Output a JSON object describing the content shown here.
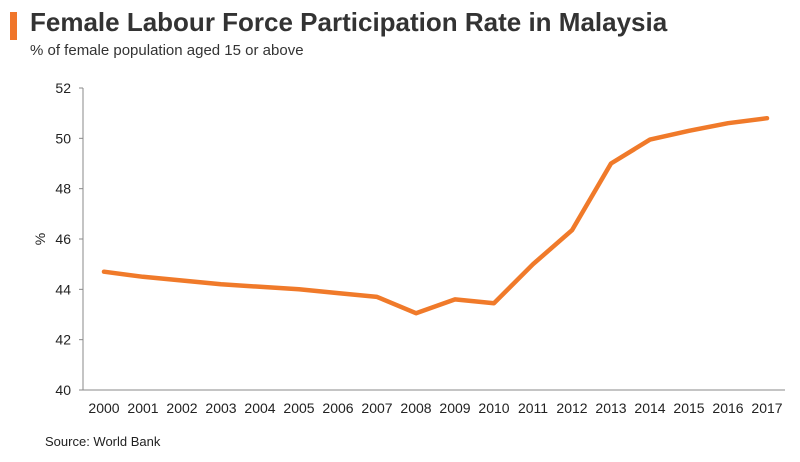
{
  "header": {
    "title": "Female Labour Force Participation Rate in Malaysia",
    "subtitle": "% of female population aged 15 or above"
  },
  "footer": {
    "source": "Source: World Bank"
  },
  "colors": {
    "accent": "#f0762b",
    "line": "#f07a2a",
    "axis": "#888888"
  },
  "chart_data": {
    "type": "line",
    "title": "Female Labour Force Participation Rate in Malaysia",
    "subtitle": "% of female population aged 15 or above",
    "xlabel": "",
    "ylabel": "%",
    "ylim": [
      40,
      52
    ],
    "yticks": [
      40,
      42,
      44,
      46,
      48,
      50,
      52
    ],
    "grid": false,
    "legend": "none",
    "categories": [
      "2000",
      "2001",
      "2002",
      "2003",
      "2004",
      "2005",
      "2006",
      "2007",
      "2008",
      "2009",
      "2010",
      "2011",
      "2012",
      "2013",
      "2014",
      "2015",
      "2016",
      "2017"
    ],
    "series": [
      {
        "values": [
          44.7,
          44.5,
          44.35,
          44.2,
          44.1,
          44.0,
          43.85,
          43.7,
          43.05,
          43.6,
          43.45,
          45.0,
          46.35,
          49.0,
          49.95,
          50.3,
          50.6,
          50.8
        ]
      }
    ]
  }
}
